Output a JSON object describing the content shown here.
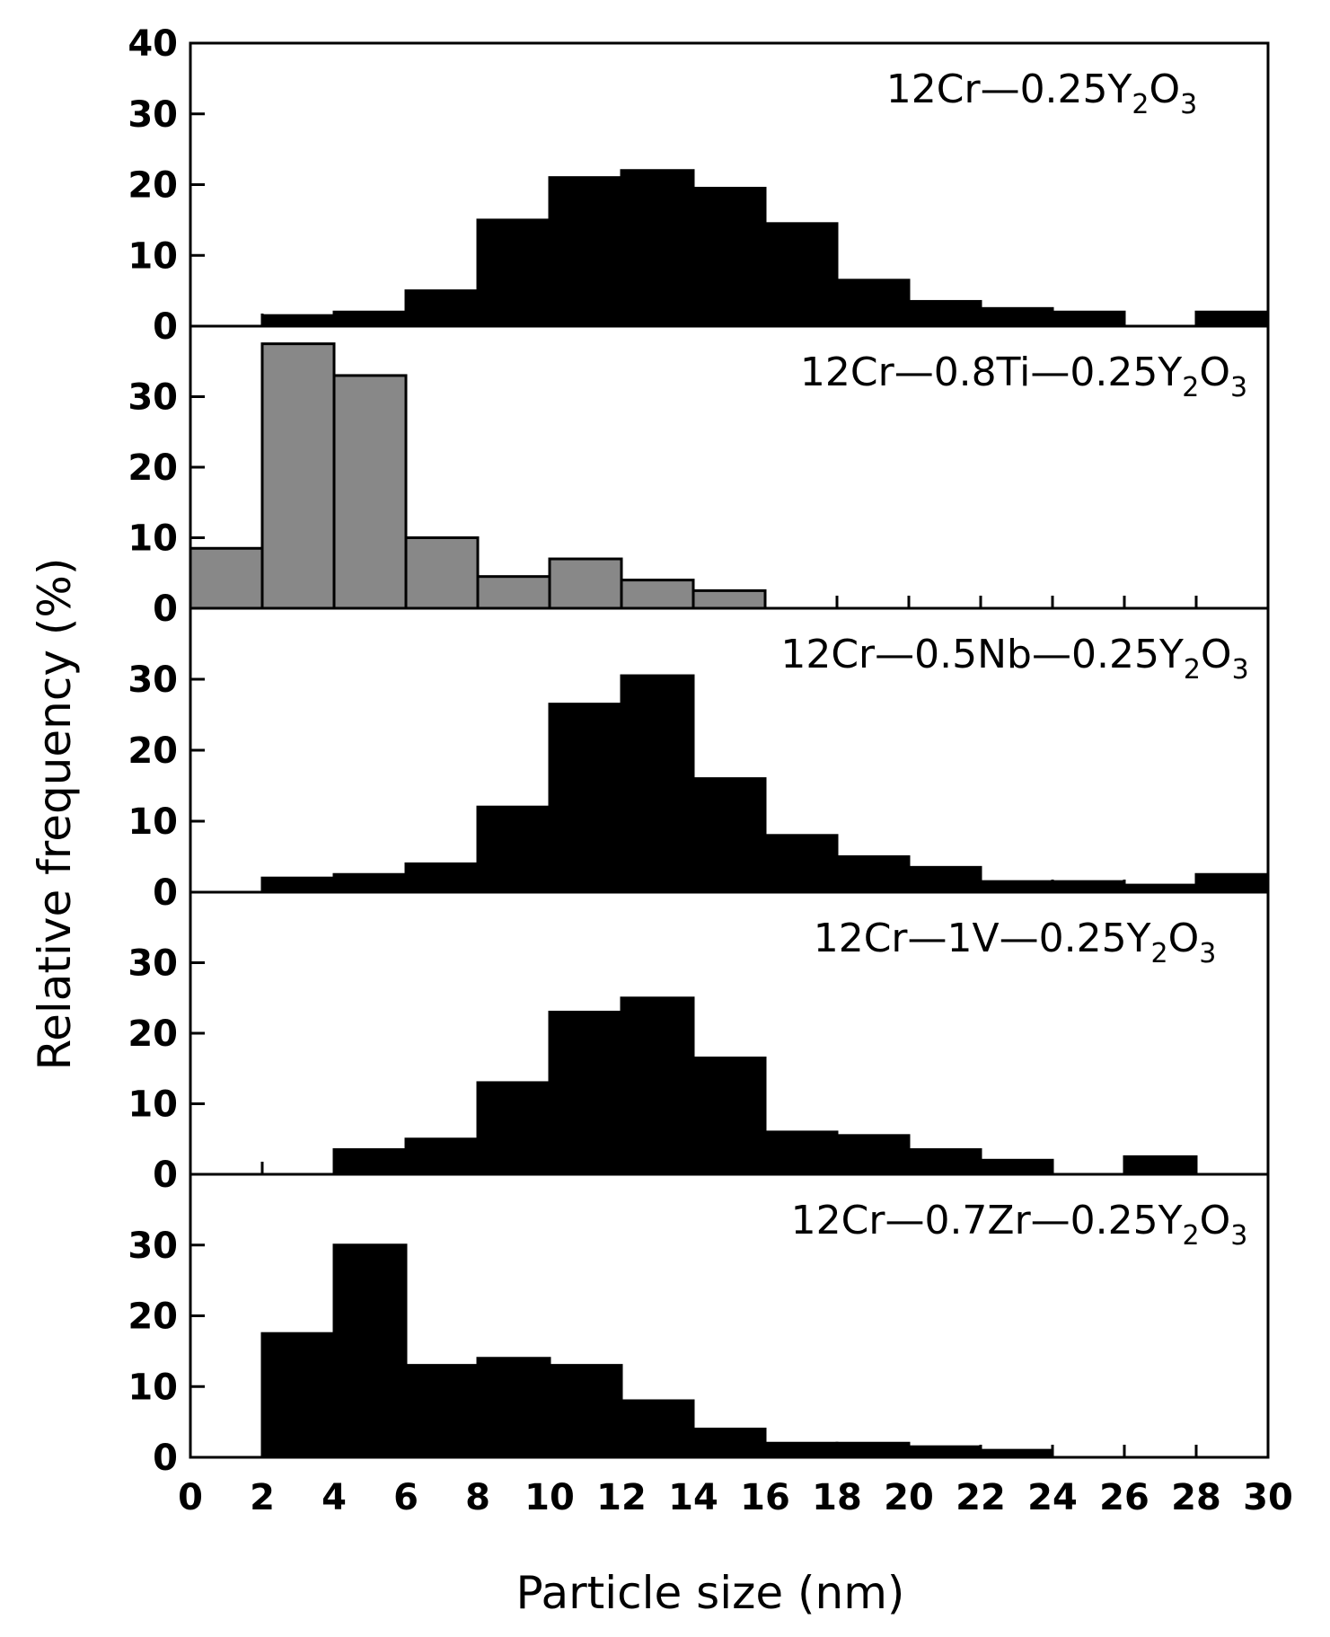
{
  "chart_data": {
    "type": "bar",
    "subtype": "stacked-panel histogram",
    "xlabel": "Particle size (nm)",
    "ylabel": "Relative frequency (%)",
    "xlim": [
      0,
      30
    ],
    "x_ticks": [
      "0",
      "2",
      "4",
      "6",
      "8",
      "10",
      "12",
      "14",
      "16",
      "18",
      "20",
      "22",
      "24",
      "26",
      "28",
      "30"
    ],
    "bin_edges": [
      0,
      2,
      4,
      6,
      8,
      10,
      12,
      14,
      16,
      18,
      20,
      22,
      24,
      26,
      28,
      30
    ],
    "grid": false,
    "legend": "none",
    "panels": [
      {
        "label_parts": [
          "12Cr",
          "—",
          "0.25Y",
          "2",
          "O",
          "3"
        ],
        "fill_color": "#000000",
        "ylim": [
          0,
          40
        ],
        "y_ticks": [
          "40",
          "30",
          "20",
          "10",
          "0"
        ],
        "values": [
          0,
          1.5,
          2,
          5,
          15,
          21,
          22,
          19.5,
          14.5,
          6.5,
          3.5,
          2.5,
          2,
          0,
          2
        ]
      },
      {
        "label_parts": [
          "12Cr",
          "—",
          "0.8Ti",
          "—",
          "0.25Y",
          "2",
          "O",
          "3"
        ],
        "fill_color": "#888888",
        "ylim": [
          0,
          40
        ],
        "y_ticks": [
          "30",
          "20",
          "10",
          "0"
        ],
        "values": [
          8.5,
          37.5,
          33,
          10,
          4.5,
          7,
          4,
          2.5,
          0,
          0,
          0,
          0,
          0,
          0,
          0
        ]
      },
      {
        "label_parts": [
          "12Cr",
          "—",
          "0.5Nb",
          "—",
          "0.25Y",
          "2",
          "O",
          "3"
        ],
        "fill_color": "#000000",
        "ylim": [
          0,
          40
        ],
        "y_ticks": [
          "30",
          "20",
          "10",
          "0"
        ],
        "values": [
          0,
          2,
          2.5,
          4,
          12,
          26.5,
          30.5,
          16,
          8,
          5,
          3.5,
          1.5,
          1.5,
          1,
          2.5
        ]
      },
      {
        "label_parts": [
          "12Cr",
          "—",
          "1V",
          "—",
          "0.25Y",
          "2",
          "O",
          "3"
        ],
        "fill_color": "#000000",
        "ylim": [
          0,
          40
        ],
        "y_ticks": [
          "30",
          "20",
          "10",
          "0"
        ],
        "values": [
          0,
          0,
          3.5,
          5,
          13,
          23,
          25,
          16.5,
          6,
          5.5,
          3.5,
          2,
          0,
          2.5,
          0
        ]
      },
      {
        "label_parts": [
          "12Cr",
          "—",
          "0.7Zr",
          "—",
          "0.25Y",
          "2",
          "O",
          "3"
        ],
        "fill_color": "#000000",
        "ylim": [
          0,
          40
        ],
        "y_ticks": [
          "30",
          "20",
          "10",
          "0"
        ],
        "values": [
          0,
          17.5,
          30,
          13,
          14,
          13,
          8,
          4,
          2,
          2,
          1.5,
          1,
          0,
          0,
          0
        ]
      }
    ]
  }
}
